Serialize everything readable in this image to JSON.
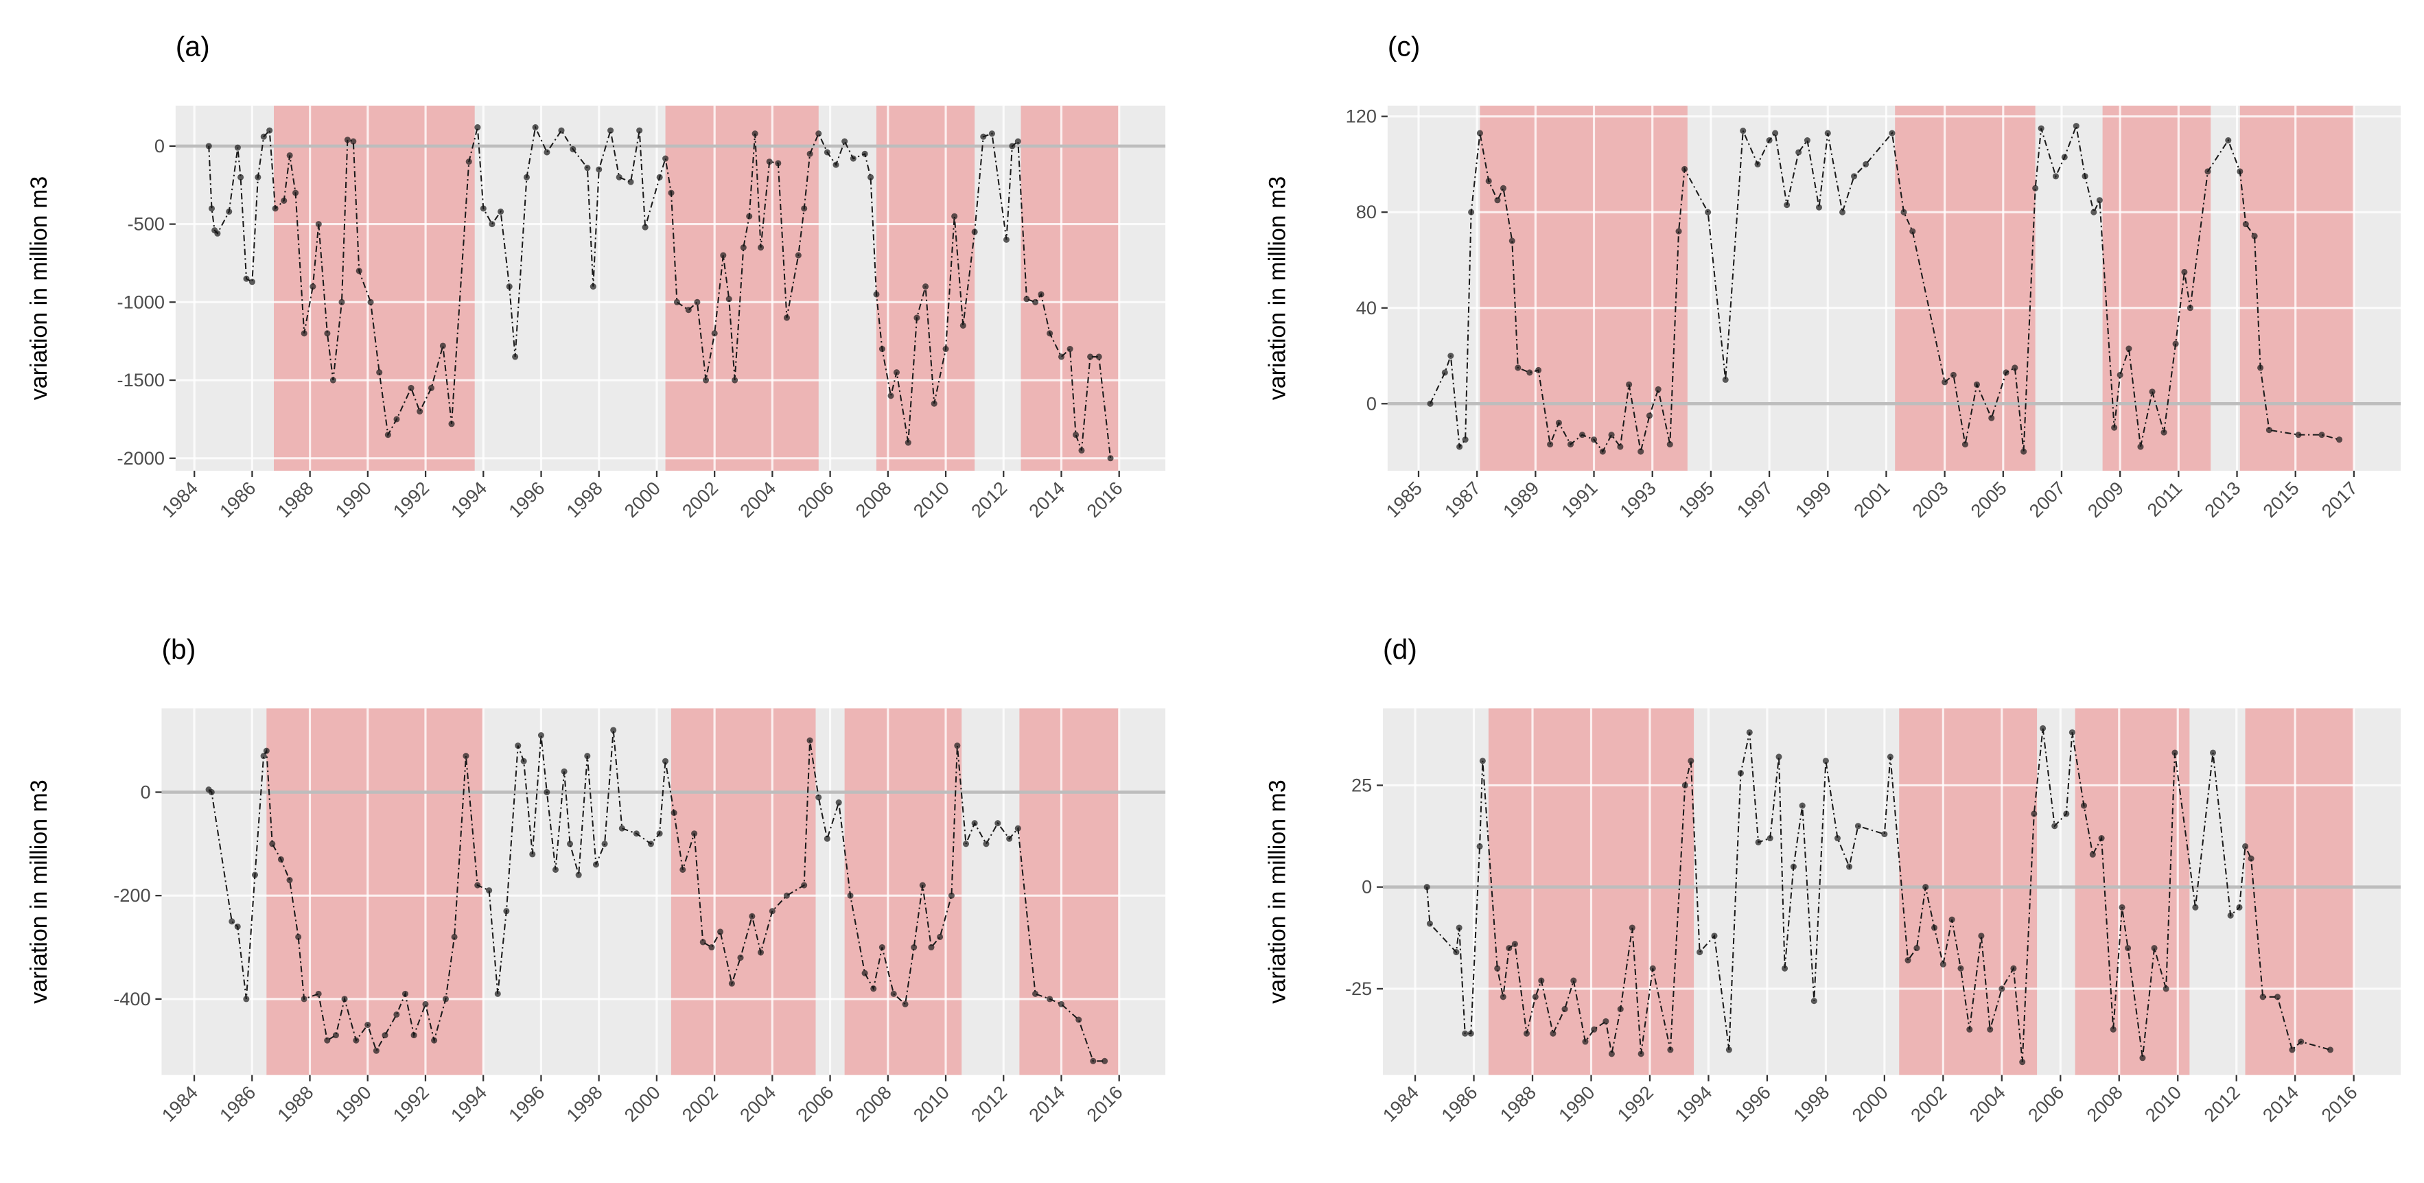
{
  "chart_data": [
    {
      "type": "line",
      "title": "(a)",
      "y_label": "variation in million m3",
      "color": "#1a1a1a",
      "reference_line": 0,
      "xlim": [
        1983.35,
        2017.6
      ],
      "ylim": [
        -2080,
        259
      ],
      "xticks": [
        1984,
        1986,
        1988,
        1990,
        1992,
        1994,
        1996,
        1998,
        2000,
        2002,
        2004,
        2006,
        2008,
        2010,
        2012,
        2014,
        2016
      ],
      "yticks": [
        -2000,
        -1500,
        -1000,
        -500,
        0
      ],
      "shaded": [
        [
          1986.75,
          1993.7
        ],
        [
          2000.3,
          2005.6
        ],
        [
          2007.6,
          2011.0
        ],
        [
          2012.6,
          2016.0
        ]
      ],
      "x": [
        1984.5,
        1984.6,
        1984.7,
        1984.8,
        1985.2,
        1985.5,
        1985.6,
        1985.8,
        1986.0,
        1986.2,
        1986.4,
        1986.6,
        1986.8,
        1987.1,
        1987.3,
        1987.5,
        1987.8,
        1988.1,
        1988.3,
        1988.6,
        1988.8,
        1989.1,
        1989.3,
        1989.5,
        1989.7,
        1990.1,
        1990.4,
        1990.7,
        1991.0,
        1991.5,
        1991.8,
        1992.2,
        1992.6,
        1992.9,
        1993.5,
        1993.8,
        1994.0,
        1994.3,
        1994.6,
        1994.9,
        1995.1,
        1995.5,
        1995.8,
        1996.2,
        1996.7,
        1997.1,
        1997.6,
        1997.8,
        1998.0,
        1998.4,
        1998.7,
        1999.1,
        1999.4,
        1999.6,
        2000.1,
        2000.3,
        2000.5,
        2000.7,
        2001.1,
        2001.4,
        2001.7,
        2002.0,
        2002.3,
        2002.5,
        2002.7,
        2003.0,
        2003.2,
        2003.4,
        2003.6,
        2003.9,
        2004.2,
        2004.5,
        2004.9,
        2005.1,
        2005.3,
        2005.6,
        2005.9,
        2006.2,
        2006.5,
        2006.8,
        2007.2,
        2007.4,
        2007.6,
        2007.8,
        2008.1,
        2008.3,
        2008.7,
        2009.0,
        2009.3,
        2009.6,
        2010.0,
        2010.3,
        2010.6,
        2011.0,
        2011.3,
        2011.6,
        2012.1,
        2012.3,
        2012.5,
        2012.8,
        2013.1,
        2013.3,
        2013.6,
        2014.0,
        2014.3,
        2014.5,
        2014.7,
        2015.0,
        2015.3,
        2015.7
      ],
      "values": [
        0,
        -400,
        -540,
        -560,
        -420,
        -10,
        -200,
        -850,
        -870,
        -200,
        60,
        100,
        -400,
        -350,
        -60,
        -300,
        -1200,
        -900,
        -500,
        -1200,
        -1500,
        -1000,
        40,
        30,
        -800,
        -1000,
        -1450,
        -1850,
        -1750,
        -1550,
        -1700,
        -1550,
        -1280,
        -1780,
        -100,
        120,
        -400,
        -500,
        -420,
        -900,
        -1350,
        -200,
        120,
        -40,
        100,
        -20,
        -140,
        -900,
        -150,
        100,
        -200,
        -230,
        100,
        -520,
        -200,
        -80,
        -300,
        -1000,
        -1050,
        -1000,
        -1500,
        -1200,
        -700,
        -980,
        -1500,
        -650,
        -450,
        80,
        -650,
        -100,
        -110,
        -1100,
        -700,
        -400,
        -50,
        80,
        -40,
        -120,
        30,
        -80,
        -50,
        -200,
        -950,
        -1300,
        -1600,
        -1450,
        -1900,
        -1100,
        -900,
        -1650,
        -1300,
        -450,
        -1150,
        -550,
        60,
        80,
        -600,
        0,
        30,
        -980,
        -1000,
        -950,
        -1200,
        -1350,
        -1300,
        -1850,
        -1950,
        -1350,
        -1350,
        -2000
      ]
    },
    {
      "type": "line",
      "title": "(b)",
      "y_label": "variation in million m3",
      "color": "#1a1a1a",
      "reference_line": 0,
      "xlim": [
        1982.87,
        2017.6
      ],
      "ylim": [
        -547,
        162
      ],
      "xticks": [
        1984,
        1986,
        1988,
        1990,
        1992,
        1994,
        1996,
        1998,
        2000,
        2002,
        2004,
        2006,
        2008,
        2010,
        2012,
        2014,
        2016
      ],
      "yticks": [
        -400,
        -200,
        0
      ],
      "shaded": [
        [
          1986.5,
          1994.0
        ],
        [
          2000.5,
          2005.5
        ],
        [
          2006.5,
          2010.55
        ],
        [
          2012.55,
          2016.0
        ]
      ],
      "x": [
        1984.5,
        1984.6,
        1985.3,
        1985.5,
        1985.8,
        1986.1,
        1986.4,
        1986.5,
        1986.7,
        1987.0,
        1987.3,
        1987.6,
        1987.8,
        1988.3,
        1988.6,
        1988.9,
        1989.2,
        1989.6,
        1990.0,
        1990.3,
        1990.6,
        1991.0,
        1991.3,
        1991.6,
        1992.0,
        1992.3,
        1992.7,
        1993.0,
        1993.4,
        1993.8,
        1994.2,
        1994.5,
        1994.8,
        1995.2,
        1995.4,
        1995.7,
        1996.0,
        1996.2,
        1996.5,
        1996.8,
        1997.0,
        1997.3,
        1997.6,
        1997.9,
        1998.2,
        1998.5,
        1998.8,
        1999.3,
        1999.8,
        2000.1,
        2000.3,
        2000.6,
        2000.9,
        2001.3,
        2001.6,
        2001.9,
        2002.2,
        2002.6,
        2002.9,
        2003.3,
        2003.6,
        2004.0,
        2004.5,
        2005.1,
        2005.3,
        2005.6,
        2005.9,
        2006.3,
        2006.7,
        2007.2,
        2007.5,
        2007.8,
        2008.2,
        2008.6,
        2008.9,
        2009.2,
        2009.5,
        2009.8,
        2010.2,
        2010.4,
        2010.7,
        2011.0,
        2011.4,
        2011.8,
        2012.2,
        2012.5,
        2013.1,
        2013.6,
        2014.0,
        2014.6,
        2015.1,
        2015.5
      ],
      "values": [
        5,
        0,
        -250,
        -260,
        -400,
        -160,
        70,
        80,
        -100,
        -130,
        -170,
        -280,
        -400,
        -390,
        -480,
        -470,
        -400,
        -480,
        -450,
        -500,
        -470,
        -430,
        -390,
        -470,
        -410,
        -480,
        -400,
        -280,
        70,
        -180,
        -190,
        -390,
        -230,
        90,
        60,
        -120,
        110,
        0,
        -150,
        40,
        -100,
        -160,
        70,
        -140,
        -100,
        120,
        -70,
        -80,
        -100,
        -80,
        60,
        -40,
        -150,
        -80,
        -290,
        -300,
        -270,
        -370,
        -320,
        -240,
        -310,
        -230,
        -200,
        -180,
        100,
        -10,
        -90,
        -20,
        -200,
        -350,
        -380,
        -300,
        -390,
        -410,
        -300,
        -180,
        -300,
        -280,
        -200,
        90,
        -100,
        -60,
        -100,
        -60,
        -90,
        -70,
        -390,
        -400,
        -410,
        -440,
        -520,
        -520
      ]
    },
    {
      "type": "line",
      "title": "(c)",
      "y_label": "variation in million m3",
      "color": "#1a1a1a",
      "reference_line": 0,
      "xlim": [
        1983.94,
        2018.6
      ],
      "ylim": [
        -28,
        124.5
      ],
      "xticks": [
        1985,
        1987,
        1989,
        1991,
        1993,
        1995,
        1997,
        1999,
        2001,
        2003,
        2005,
        2007,
        2009,
        2011,
        2013,
        2015,
        2017
      ],
      "yticks": [
        0,
        40,
        80,
        120
      ],
      "shaded": [
        [
          1987.1,
          1994.2
        ],
        [
          2001.3,
          2006.1
        ],
        [
          2008.4,
          2012.1
        ],
        [
          2013.1,
          2017.0
        ]
      ],
      "x": [
        1985.4,
        1985.9,
        1986.1,
        1986.4,
        1986.6,
        1986.8,
        1987.1,
        1987.4,
        1987.7,
        1987.9,
        1988.2,
        1988.4,
        1988.8,
        1989.1,
        1989.5,
        1989.8,
        1990.2,
        1990.6,
        1991.0,
        1991.3,
        1991.6,
        1991.9,
        1992.2,
        1992.6,
        1992.9,
        1993.2,
        1993.6,
        1993.9,
        1994.1,
        1994.9,
        1995.5,
        1996.1,
        1996.6,
        1997.0,
        1997.2,
        1997.6,
        1998.0,
        1998.3,
        1998.7,
        1999.0,
        1999.5,
        1999.9,
        2000.3,
        2001.2,
        2001.6,
        2001.9,
        2003.0,
        2003.3,
        2003.7,
        2004.1,
        2004.6,
        2005.1,
        2005.4,
        2005.7,
        2006.1,
        2006.3,
        2006.8,
        2007.1,
        2007.5,
        2007.8,
        2008.1,
        2008.3,
        2008.8,
        2009.0,
        2009.3,
        2009.7,
        2010.1,
        2010.5,
        2010.9,
        2011.2,
        2011.4,
        2012.0,
        2012.7,
        2013.1,
        2013.3,
        2013.6,
        2013.8,
        2014.1,
        2015.1,
        2015.9,
        2016.5
      ],
      "values": [
        0,
        13,
        20,
        -18,
        -15,
        80,
        113,
        93,
        85,
        90,
        68,
        15,
        13,
        14,
        -17,
        -8,
        -17,
        -13,
        -15,
        -20,
        -13,
        -18,
        8,
        -20,
        -5,
        6,
        -17,
        72,
        98,
        80,
        10,
        114,
        100,
        110,
        113,
        83,
        105,
        110,
        82,
        113,
        80,
        95,
        100,
        113,
        80,
        72,
        9,
        12,
        -17,
        8,
        -6,
        13,
        15,
        -20,
        90,
        115,
        95,
        103,
        116,
        95,
        80,
        85,
        -10,
        12,
        23,
        -18,
        5,
        -12,
        25,
        55,
        40,
        97,
        110,
        97,
        75,
        70,
        15,
        -11,
        -13,
        -13,
        -15
      ]
    },
    {
      "type": "line",
      "title": "(d)",
      "y_label": "variation in million m3",
      "color": "#1a1a1a",
      "reference_line": 0,
      "xlim": [
        1982.9,
        2017.6
      ],
      "ylim": [
        -46.2,
        43.9
      ],
      "xticks": [
        1984,
        1986,
        1988,
        1990,
        1992,
        1994,
        1996,
        1998,
        2000,
        2002,
        2004,
        2006,
        2008,
        2010,
        2012,
        2014,
        2016
      ],
      "yticks": [
        -25,
        0,
        25
      ],
      "shaded": [
        [
          1986.5,
          1993.5
        ],
        [
          2000.5,
          2005.2
        ],
        [
          2006.5,
          2010.4
        ],
        [
          2012.3,
          2016.0
        ]
      ],
      "x": [
        1984.4,
        1984.5,
        1985.4,
        1985.5,
        1985.7,
        1985.9,
        1986.2,
        1986.3,
        1986.8,
        1987.0,
        1987.2,
        1987.4,
        1987.8,
        1988.1,
        1988.3,
        1988.7,
        1989.1,
        1989.4,
        1989.8,
        1990.1,
        1990.5,
        1990.7,
        1991.0,
        1991.4,
        1991.7,
        1992.1,
        1992.7,
        1993.2,
        1993.4,
        1993.7,
        1994.2,
        1994.7,
        1995.1,
        1995.4,
        1995.7,
        1996.1,
        1996.4,
        1996.6,
        1996.9,
        1997.2,
        1997.6,
        1998.0,
        1998.4,
        1998.8,
        1999.1,
        2000.0,
        2000.2,
        2000.8,
        2001.1,
        2001.4,
        2001.7,
        2002.0,
        2002.3,
        2002.6,
        2002.9,
        2003.3,
        2003.6,
        2004.0,
        2004.4,
        2004.7,
        2005.1,
        2005.4,
        2005.8,
        2006.2,
        2006.4,
        2006.8,
        2007.1,
        2007.4,
        2007.8,
        2008.1,
        2008.3,
        2008.8,
        2009.2,
        2009.6,
        2009.9,
        2010.6,
        2011.2,
        2011.8,
        2012.1,
        2012.3,
        2012.5,
        2012.9,
        2013.4,
        2013.9,
        2014.2,
        2015.2
      ],
      "values": [
        0,
        -9,
        -16,
        -10,
        -36,
        -36,
        10,
        31,
        -20,
        -27,
        -15,
        -14,
        -36,
        -27,
        -23,
        -36,
        -30,
        -23,
        -38,
        -35,
        -33,
        -41,
        -30,
        -10,
        -41,
        -20,
        -40,
        25,
        31,
        -16,
        -12,
        -40,
        28,
        38,
        11,
        12,
        32,
        -20,
        5,
        20,
        -28,
        31,
        12,
        5,
        15,
        13,
        32,
        -18,
        -15,
        0,
        -10,
        -19,
        -8,
        -20,
        -35,
        -12,
        -35,
        -25,
        -20,
        -43,
        18,
        39,
        15,
        18,
        38,
        20,
        8,
        12,
        -35,
        -5,
        -15,
        -42,
        -15,
        -25,
        33,
        -5,
        33,
        -7,
        -5,
        10,
        7,
        -27,
        -27,
        -40,
        -38,
        -40
      ]
    }
  ]
}
